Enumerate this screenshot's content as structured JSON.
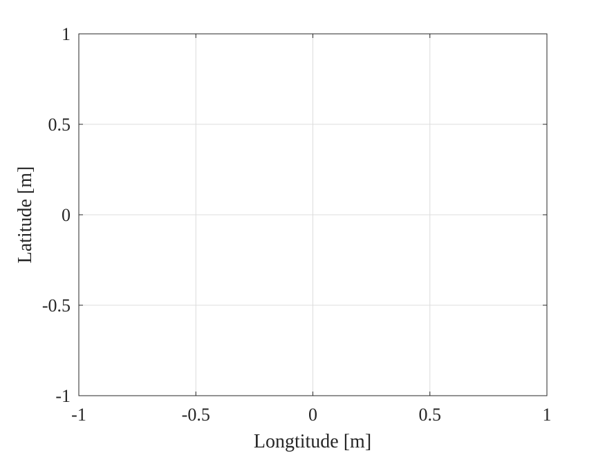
{
  "chart_data": {
    "type": "line",
    "title": "",
    "xlabel": "Longtitude [m]",
    "ylabel": "Latitude [m]",
    "xlim": [
      -1,
      1
    ],
    "ylim": [
      -1,
      1
    ],
    "x_ticks": [
      -1,
      -0.5,
      0,
      0.5,
      1
    ],
    "y_ticks": [
      -1,
      -0.5,
      0,
      0.5,
      1
    ],
    "x_tick_labels": [
      "-1",
      "-0.5",
      "0",
      "0.5",
      "1"
    ],
    "y_tick_labels": [
      "-1",
      "-0.5",
      "0",
      "0.5",
      "1"
    ],
    "grid": true,
    "box": true,
    "series": [],
    "colors": {
      "axis": "#262626",
      "grid": "#dcdcdc",
      "background": "#ffffff"
    }
  }
}
